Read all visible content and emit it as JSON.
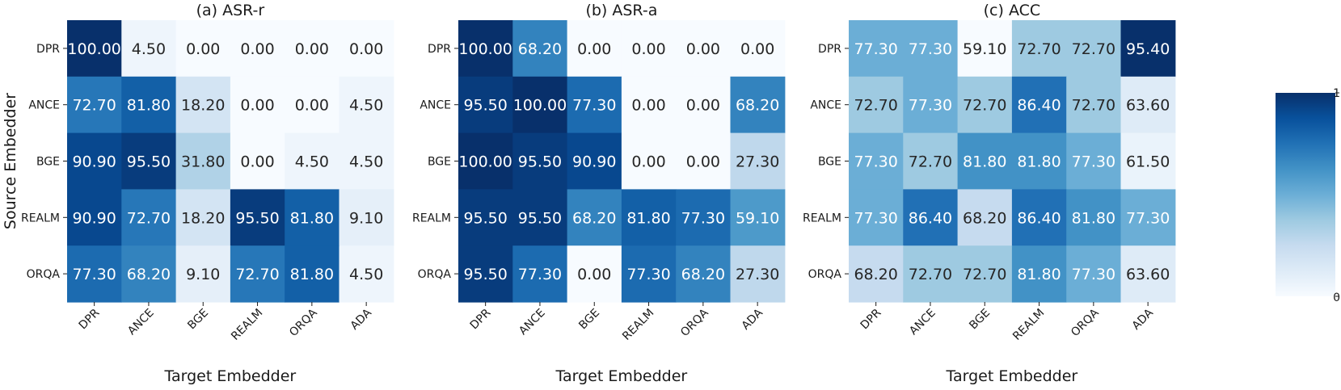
{
  "chart_data": [
    {
      "type": "heatmap",
      "title": "(a) ASR-r",
      "xlabel": "Target Embedder",
      "ylabel": "Source Embedder",
      "x_categories": [
        "DPR",
        "ANCE",
        "BGE",
        "REALM",
        "ORQA",
        "ADA"
      ],
      "y_categories": [
        "DPR",
        "ANCE",
        "BGE",
        "REALM",
        "ORQA"
      ],
      "values": [
        [
          "100.00",
          "4.50",
          "0.00",
          "0.00",
          "0.00",
          "0.00"
        ],
        [
          "72.70",
          "81.80",
          "18.20",
          "0.00",
          "0.00",
          "4.50"
        ],
        [
          "90.90",
          "95.50",
          "31.80",
          "0.00",
          "4.50",
          "4.50"
        ],
        [
          "90.90",
          "72.70",
          "18.20",
          "95.50",
          "81.80",
          "9.10"
        ],
        [
          "77.30",
          "68.20",
          "9.10",
          "72.70",
          "81.80",
          "4.50"
        ]
      ]
    },
    {
      "type": "heatmap",
      "title": "(b) ASR-a",
      "xlabel": "Target Embedder",
      "ylabel": "",
      "x_categories": [
        "DPR",
        "ANCE",
        "BGE",
        "REALM",
        "ORQA",
        "ADA"
      ],
      "y_categories": [
        "DPR",
        "ANCE",
        "BGE",
        "REALM",
        "ORQA"
      ],
      "values": [
        [
          "100.00",
          "68.20",
          "0.00",
          "0.00",
          "0.00",
          "0.00"
        ],
        [
          "95.50",
          "100.00",
          "77.30",
          "0.00",
          "0.00",
          "68.20"
        ],
        [
          "100.00",
          "95.50",
          "90.90",
          "0.00",
          "0.00",
          "27.30"
        ],
        [
          "95.50",
          "95.50",
          "68.20",
          "81.80",
          "77.30",
          "59.10"
        ],
        [
          "95.50",
          "77.30",
          "0.00",
          "77.30",
          "68.20",
          "27.30"
        ]
      ]
    },
    {
      "type": "heatmap",
      "title": "(c) ACC",
      "xlabel": "Target Embedder",
      "ylabel": "",
      "x_categories": [
        "DPR",
        "ANCE",
        "BGE",
        "REALM",
        "ORQA",
        "ADA"
      ],
      "y_categories": [
        "DPR",
        "ANCE",
        "BGE",
        "REALM",
        "ORQA"
      ],
      "values": [
        [
          "77.30",
          "77.30",
          "59.10",
          "72.70",
          "72.70",
          "95.40"
        ],
        [
          "72.70",
          "77.30",
          "72.70",
          "86.40",
          "72.70",
          "63.60"
        ],
        [
          "77.30",
          "72.70",
          "81.80",
          "81.80",
          "77.30",
          "61.50"
        ],
        [
          "77.30",
          "86.40",
          "68.20",
          "86.40",
          "81.80",
          "77.30"
        ],
        [
          "68.20",
          "72.70",
          "72.70",
          "81.80",
          "77.30",
          "63.60"
        ]
      ],
      "color_min": 59.1,
      "color_max": 95.4
    }
  ],
  "colorbar": {
    "min_label": "0",
    "max_label": "1",
    "colormap": "Blues",
    "color_low": "#f7fbff",
    "color_high": "#08306b"
  }
}
